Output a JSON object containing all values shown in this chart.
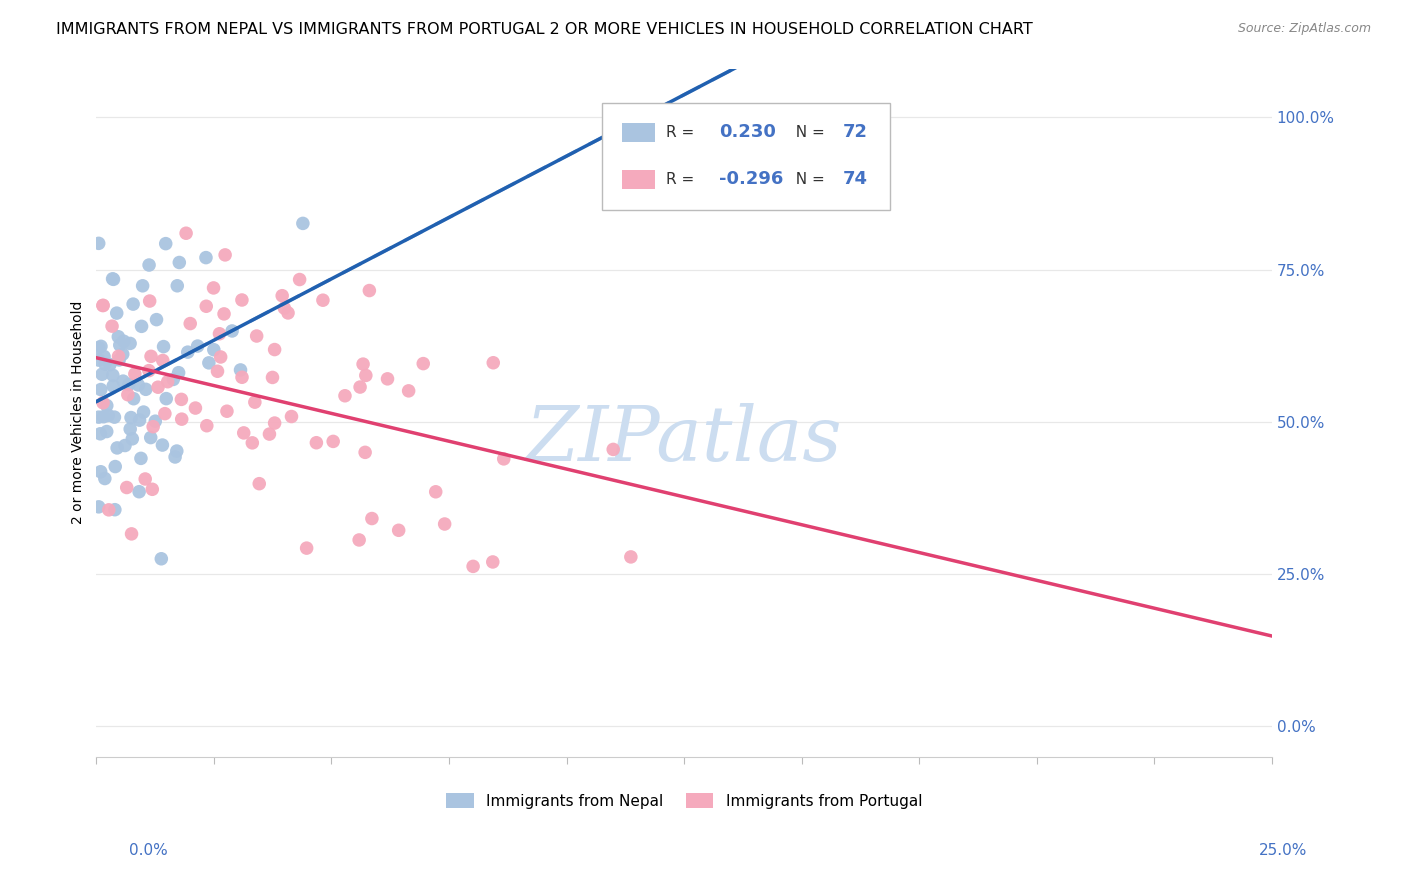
{
  "title": "IMMIGRANTS FROM NEPAL VS IMMIGRANTS FROM PORTUGAL 2 OR MORE VEHICLES IN HOUSEHOLD CORRELATION CHART",
  "source": "Source: ZipAtlas.com",
  "ylabel": "2 or more Vehicles in Household",
  "xlim": [
    0.0,
    0.25
  ],
  "ylim": [
    -0.05,
    1.08
  ],
  "nepal_R": 0.23,
  "nepal_N": 72,
  "portugal_R": -0.296,
  "portugal_N": 74,
  "nepal_color": "#aac4e0",
  "nepal_line_color": "#2060b0",
  "portugal_color": "#f5aabd",
  "portugal_line_color": "#e04070",
  "watermark_text": "ZIPatlas",
  "watermark_color": "#ccddf0",
  "background_color": "#ffffff",
  "grid_color": "#e8e8e8",
  "title_fontsize": 11.5,
  "right_ytick_color": "#4472c4",
  "right_ytick_fontsize": 11
}
